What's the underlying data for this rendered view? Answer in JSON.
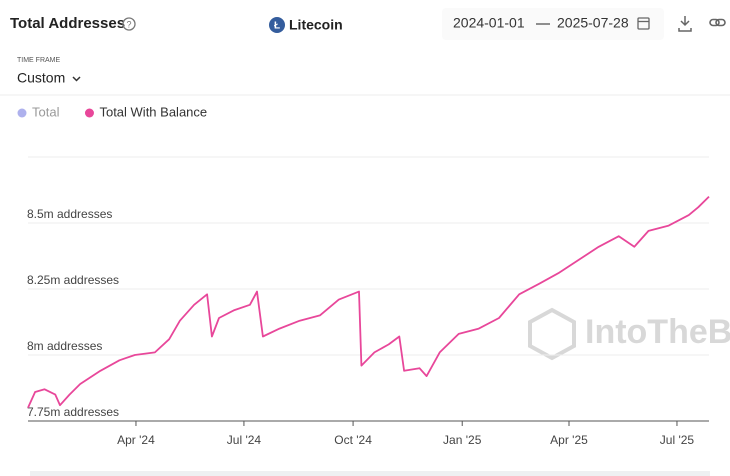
{
  "header": {
    "title": "Total Addresses",
    "asset": "Litecoin",
    "date_start": "2024-01-01",
    "date_end": "2025-07-28",
    "timeframe_label": "TIME FRAME",
    "timeframe": "Custom"
  },
  "chart_data": {
    "type": "line",
    "x": [
      "2024-01-01",
      "2024-01-07",
      "2024-01-15",
      "2024-01-24",
      "2024-01-28",
      "2024-02-05",
      "2024-02-14",
      "2024-03-02",
      "2024-03-18",
      "2024-03-31",
      "2024-04-17",
      "2024-04-29",
      "2024-05-08",
      "2024-05-20",
      "2024-05-31",
      "2024-06-04",
      "2024-06-10",
      "2024-06-23",
      "2024-07-06",
      "2024-07-12",
      "2024-07-17",
      "2024-07-31",
      "2024-08-17",
      "2024-09-03",
      "2024-09-19",
      "2024-10-06",
      "2024-10-08",
      "2024-10-19",
      "2024-10-31",
      "2024-11-09",
      "2024-11-13",
      "2024-11-26",
      "2024-12-02",
      "2024-12-13",
      "2024-12-29",
      "2025-01-15",
      "2025-02-01",
      "2025-02-18",
      "2025-03-07",
      "2025-03-23",
      "2025-04-09",
      "2025-04-26",
      "2025-05-13",
      "2025-05-26",
      "2025-06-07",
      "2025-06-24",
      "2025-07-11",
      "2025-07-19",
      "2025-07-28"
    ],
    "series": [
      {
        "name": "Total",
        "color": "#9a9de8",
        "visible": false
      },
      {
        "name": "Total With Balance",
        "color": "#e8479a",
        "visible": true,
        "values": [
          7800000,
          7860000,
          7870000,
          7850000,
          7810000,
          7850000,
          7890000,
          7940000,
          7980000,
          8000000,
          8010000,
          8060000,
          8130000,
          8190000,
          8230000,
          8070000,
          8140000,
          8170000,
          8190000,
          8240000,
          8070000,
          8100000,
          8130000,
          8150000,
          8210000,
          8240000,
          7960000,
          8010000,
          8040000,
          8070000,
          7940000,
          7950000,
          7920000,
          8010000,
          8080000,
          8100000,
          8140000,
          8230000,
          8270000,
          8310000,
          8360000,
          8410000,
          8450000,
          8410000,
          8470000,
          8490000,
          8530000,
          8560000,
          8600000
        ]
      }
    ],
    "xlim": [
      "2024-01-01",
      "2025-07-28"
    ],
    "xticks": [
      {
        "value": "2024-04-01",
        "label": "Apr '24"
      },
      {
        "value": "2024-07-01",
        "label": "Jul '24"
      },
      {
        "value": "2024-10-01",
        "label": "Oct '24"
      },
      {
        "value": "2025-01-01",
        "label": "Jan '25"
      },
      {
        "value": "2025-04-01",
        "label": "Apr '25"
      },
      {
        "value": "2025-07-01",
        "label": "Jul '25"
      }
    ],
    "ylim": [
      7750000,
      8750000
    ],
    "yticks": [
      {
        "value": 7750000,
        "label": "7.75m addresses"
      },
      {
        "value": 8000000,
        "label": "8m addresses"
      },
      {
        "value": 8250000,
        "label": "8.25m addresses"
      },
      {
        "value": 8500000,
        "label": "8.5m addresses"
      }
    ],
    "grid": true,
    "watermark": "IntoTheBlock"
  }
}
